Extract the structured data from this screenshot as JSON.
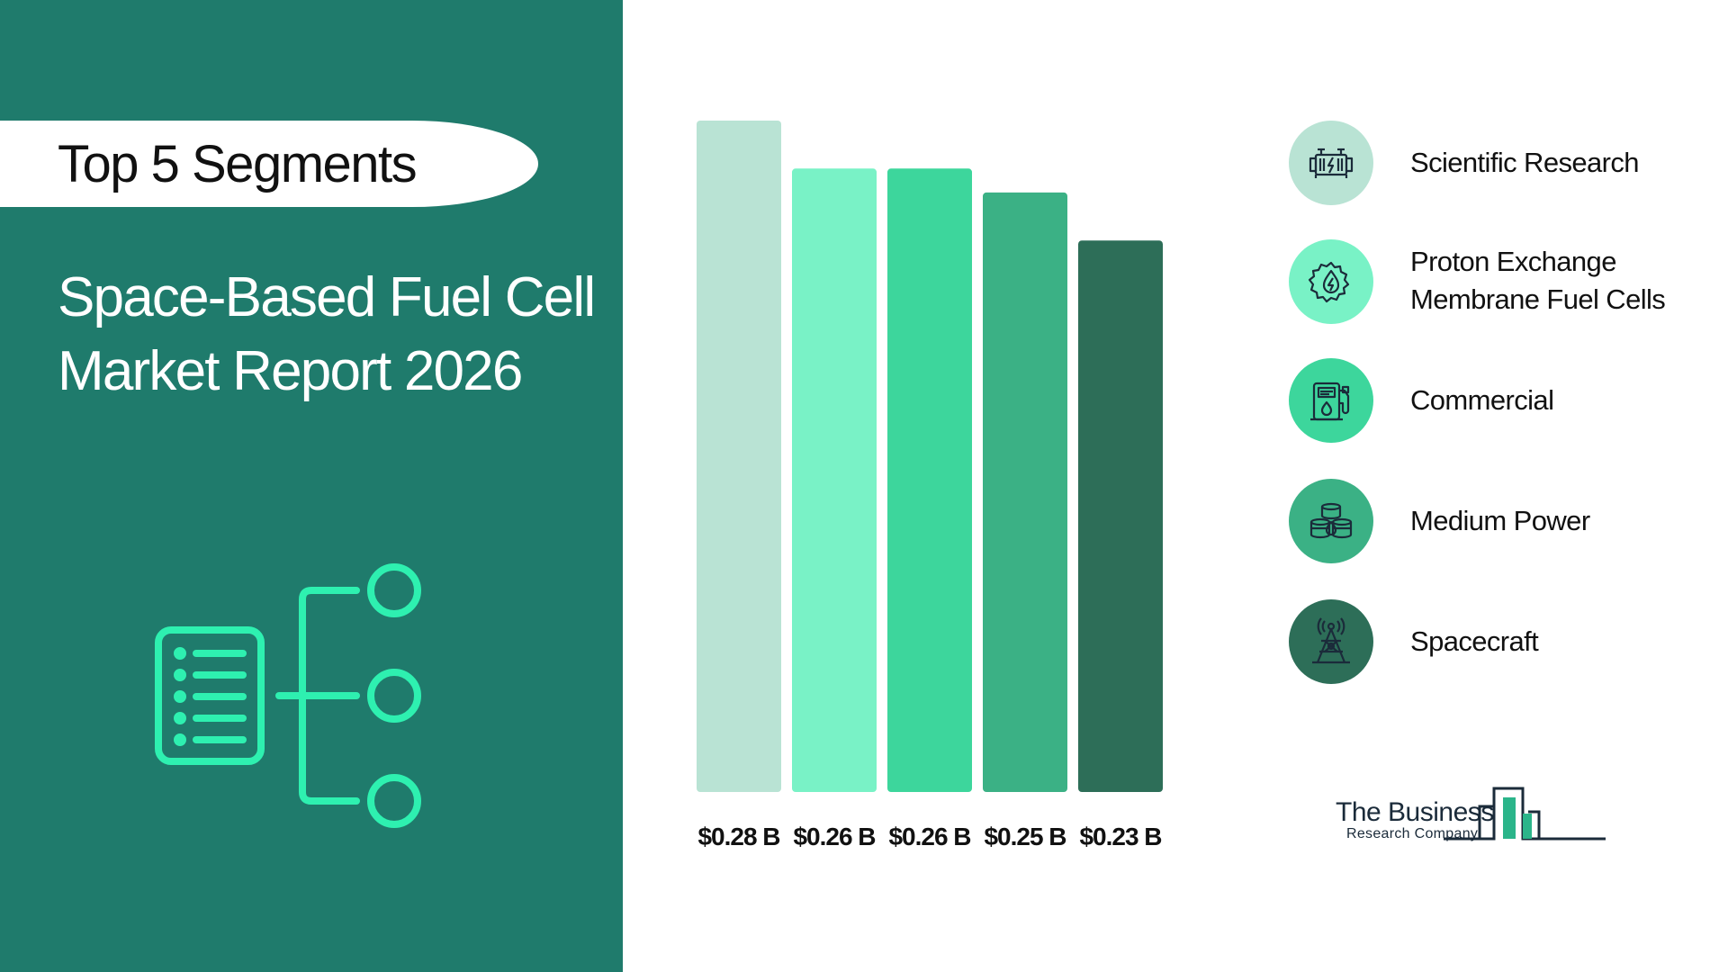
{
  "header": {
    "pill_text": "Top 5 Segments",
    "title_line1": "Space-Based Fuel Cell",
    "title_line2": "Market Report 2026"
  },
  "chart_data": {
    "type": "bar",
    "categories": [
      "Scientific Research",
      "Proton Exchange Membrane Fuel Cells",
      "Commercial",
      "Medium Power",
      "Spacecraft"
    ],
    "values": [
      0.28,
      0.26,
      0.26,
      0.25,
      0.23
    ],
    "data_labels": [
      "$0.28 B",
      "$0.26 B",
      "$0.26 B",
      "$0.25 B",
      "$0.23 B"
    ],
    "colors": [
      "#b9e3d4",
      "#79f2c6",
      "#3dd69c",
      "#3bb185",
      "#2d6e58"
    ],
    "ylim": [
      0,
      0.28
    ],
    "grid": false,
    "legend_position": "right"
  },
  "legend": {
    "items": [
      {
        "label_lines": [
          "Scientific Research"
        ],
        "color": "#b9e3d4",
        "icon": "fuel-cell-stack-icon"
      },
      {
        "label_lines": [
          "Proton Exchange",
          "Membrane Fuel Cells"
        ],
        "color": "#79f2c6",
        "icon": "energy-gear-icon"
      },
      {
        "label_lines": [
          "Commercial"
        ],
        "color": "#3dd69c",
        "icon": "fuel-station-icon"
      },
      {
        "label_lines": [
          "Medium Power"
        ],
        "color": "#3bb185",
        "icon": "fuel-barrels-icon"
      },
      {
        "label_lines": [
          "Spacecraft"
        ],
        "color": "#2d6e58",
        "icon": "transmission-tower-icon"
      }
    ]
  },
  "logo": {
    "line1": "The Business",
    "line2": "Research Company"
  },
  "colors": {
    "panel": "#1f7b6c",
    "illustration": "#2ef0b0"
  }
}
